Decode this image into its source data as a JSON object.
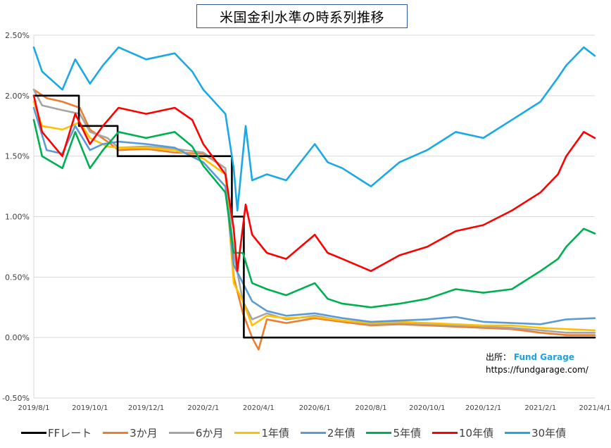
{
  "chart_data": {
    "type": "line",
    "title": "米国金利水準の時系列推移",
    "y_ticks": [
      "2.50%",
      "2.00%",
      "1.50%",
      "1.00%",
      "0.50%",
      "0.00%",
      "-0.50%"
    ],
    "y_tick_values": [
      2.5,
      2.0,
      1.5,
      1.0,
      0.5,
      0.0,
      -0.5
    ],
    "x_ticks": [
      "2019/8/1",
      "2019/10/1",
      "2019/12/1",
      "2020/2/1",
      "2020/4/1",
      "2020/6/1",
      "2020/8/1",
      "2020/10/1",
      "2020/12/1",
      "2021/2/1",
      "2021/4/1"
    ],
    "ylim": [
      -0.5,
      2.5
    ],
    "grid": "horizontal",
    "legend_position": "bottom",
    "source_label": "出所：",
    "source_brand": "Fund Garage",
    "source_url": "https://fundgarage.com/",
    "series": [
      {
        "name": "FFレート",
        "color": "#000000",
        "step": true,
        "points": [
          [
            "2019/8/1",
            2.0
          ],
          [
            "2019/9/19",
            2.0
          ],
          [
            "2019/9/19",
            1.75
          ],
          [
            "2019/10/31",
            1.75
          ],
          [
            "2019/10/31",
            1.5
          ],
          [
            "2020/3/3",
            1.5
          ],
          [
            "2020/3/3",
            1.0
          ],
          [
            "2020/3/16",
            1.0
          ],
          [
            "2020/3/16",
            0.0
          ],
          [
            "2021/4/1",
            0.0
          ]
        ]
      },
      {
        "name": "3か月",
        "color": "#ed7d31",
        "points": [
          [
            "2019/8/1",
            2.05
          ],
          [
            "2019/8/15",
            1.98
          ],
          [
            "2019/9/1",
            1.95
          ],
          [
            "2019/9/20",
            1.9
          ],
          [
            "2019/10/1",
            1.72
          ],
          [
            "2019/10/20",
            1.62
          ],
          [
            "2019/11/1",
            1.55
          ],
          [
            "2019/12/1",
            1.56
          ],
          [
            "2020/1/1",
            1.53
          ],
          [
            "2020/2/1",
            1.52
          ],
          [
            "2020/2/25",
            1.4
          ],
          [
            "2020/3/5",
            0.5
          ],
          [
            "2020/3/15",
            0.2
          ],
          [
            "2020/3/25",
            0.0
          ],
          [
            "2020/4/1",
            -0.1
          ],
          [
            "2020/4/10",
            0.15
          ],
          [
            "2020/5/1",
            0.12
          ],
          [
            "2020/6/1",
            0.16
          ],
          [
            "2020/7/1",
            0.13
          ],
          [
            "2020/8/1",
            0.1
          ],
          [
            "2020/9/1",
            0.11
          ],
          [
            "2020/10/1",
            0.1
          ],
          [
            "2020/11/1",
            0.09
          ],
          [
            "2020/12/1",
            0.08
          ],
          [
            "2021/1/1",
            0.07
          ],
          [
            "2021/2/1",
            0.04
          ],
          [
            "2021/3/1",
            0.02
          ],
          [
            "2021/4/1",
            0.02
          ]
        ]
      },
      {
        "name": "6か月",
        "color": "#a5a5a5",
        "points": [
          [
            "2019/8/1",
            2.05
          ],
          [
            "2019/8/10",
            1.92
          ],
          [
            "2019/9/1",
            1.88
          ],
          [
            "2019/9/20",
            1.85
          ],
          [
            "2019/10/1",
            1.7
          ],
          [
            "2019/10/20",
            1.65
          ],
          [
            "2019/11/1",
            1.57
          ],
          [
            "2019/12/1",
            1.58
          ],
          [
            "2020/1/1",
            1.56
          ],
          [
            "2020/2/1",
            1.53
          ],
          [
            "2020/2/25",
            1.4
          ],
          [
            "2020/3/5",
            0.7
          ],
          [
            "2020/3/15",
            0.3
          ],
          [
            "2020/3/25",
            0.15
          ],
          [
            "2020/4/10",
            0.2
          ],
          [
            "2020/5/1",
            0.15
          ],
          [
            "2020/6/1",
            0.18
          ],
          [
            "2020/7/1",
            0.14
          ],
          [
            "2020/8/1",
            0.11
          ],
          [
            "2020/9/1",
            0.12
          ],
          [
            "2020/10/1",
            0.11
          ],
          [
            "2020/11/1",
            0.1
          ],
          [
            "2020/12/1",
            0.09
          ],
          [
            "2021/1/1",
            0.08
          ],
          [
            "2021/2/1",
            0.06
          ],
          [
            "2021/3/1",
            0.04
          ],
          [
            "2021/4/1",
            0.04
          ]
        ]
      },
      {
        "name": "1年債",
        "color": "#ffc000",
        "points": [
          [
            "2019/8/1",
            1.95
          ],
          [
            "2019/8/10",
            1.75
          ],
          [
            "2019/9/1",
            1.72
          ],
          [
            "2019/9/20",
            1.78
          ],
          [
            "2019/10/1",
            1.65
          ],
          [
            "2019/10/20",
            1.58
          ],
          [
            "2019/11/1",
            1.57
          ],
          [
            "2019/12/1",
            1.57
          ],
          [
            "2020/1/1",
            1.55
          ],
          [
            "2020/2/1",
            1.48
          ],
          [
            "2020/2/25",
            1.35
          ],
          [
            "2020/3/5",
            0.45
          ],
          [
            "2020/3/15",
            0.3
          ],
          [
            "2020/3/25",
            0.1
          ],
          [
            "2020/4/10",
            0.18
          ],
          [
            "2020/5/1",
            0.16
          ],
          [
            "2020/6/1",
            0.17
          ],
          [
            "2020/7/1",
            0.14
          ],
          [
            "2020/8/1",
            0.12
          ],
          [
            "2020/9/1",
            0.13
          ],
          [
            "2020/10/1",
            0.12
          ],
          [
            "2020/11/1",
            0.11
          ],
          [
            "2020/12/1",
            0.1
          ],
          [
            "2021/1/1",
            0.1
          ],
          [
            "2021/2/1",
            0.08
          ],
          [
            "2021/3/1",
            0.07
          ],
          [
            "2021/4/1",
            0.06
          ]
        ]
      },
      {
        "name": "2年債",
        "color": "#5b9bd5",
        "points": [
          [
            "2019/8/1",
            1.9
          ],
          [
            "2019/8/15",
            1.55
          ],
          [
            "2019/9/1",
            1.52
          ],
          [
            "2019/9/15",
            1.75
          ],
          [
            "2019/10/1",
            1.55
          ],
          [
            "2019/10/15",
            1.6
          ],
          [
            "2019/11/1",
            1.62
          ],
          [
            "2019/12/1",
            1.6
          ],
          [
            "2020/1/1",
            1.57
          ],
          [
            "2020/2/1",
            1.45
          ],
          [
            "2020/2/25",
            1.25
          ],
          [
            "2020/3/5",
            0.6
          ],
          [
            "2020/3/15",
            0.45
          ],
          [
            "2020/3/25",
            0.3
          ],
          [
            "2020/4/10",
            0.22
          ],
          [
            "2020/5/1",
            0.18
          ],
          [
            "2020/6/1",
            0.2
          ],
          [
            "2020/7/1",
            0.16
          ],
          [
            "2020/8/1",
            0.13
          ],
          [
            "2020/9/1",
            0.14
          ],
          [
            "2020/10/1",
            0.15
          ],
          [
            "2020/11/1",
            0.17
          ],
          [
            "2020/12/1",
            0.13
          ],
          [
            "2021/1/1",
            0.12
          ],
          [
            "2021/2/1",
            0.11
          ],
          [
            "2021/3/1",
            0.15
          ],
          [
            "2021/4/1",
            0.16
          ]
        ]
      },
      {
        "name": "5年債",
        "color": "#00b050",
        "points": [
          [
            "2019/8/1",
            1.8
          ],
          [
            "2019/8/10",
            1.5
          ],
          [
            "2019/9/1",
            1.4
          ],
          [
            "2019/9/15",
            1.7
          ],
          [
            "2019/10/1",
            1.4
          ],
          [
            "2019/10/15",
            1.55
          ],
          [
            "2019/11/1",
            1.7
          ],
          [
            "2019/12/1",
            1.65
          ],
          [
            "2020/1/1",
            1.7
          ],
          [
            "2020/1/20",
            1.58
          ],
          [
            "2020/2/1",
            1.42
          ],
          [
            "2020/2/25",
            1.2
          ],
          [
            "2020/3/5",
            0.7
          ],
          [
            "2020/3/15",
            0.7
          ],
          [
            "2020/3/25",
            0.45
          ],
          [
            "2020/4/10",
            0.4
          ],
          [
            "2020/5/1",
            0.35
          ],
          [
            "2020/6/1",
            0.45
          ],
          [
            "2020/6/15",
            0.32
          ],
          [
            "2020/7/1",
            0.28
          ],
          [
            "2020/8/1",
            0.25
          ],
          [
            "2020/9/1",
            0.28
          ],
          [
            "2020/10/1",
            0.32
          ],
          [
            "2020/11/1",
            0.4
          ],
          [
            "2020/12/1",
            0.37
          ],
          [
            "2021/1/1",
            0.4
          ],
          [
            "2021/2/1",
            0.55
          ],
          [
            "2021/2/20",
            0.65
          ],
          [
            "2021/3/1",
            0.75
          ],
          [
            "2021/3/20",
            0.9
          ],
          [
            "2021/4/1",
            0.86
          ]
        ]
      },
      {
        "name": "10年債",
        "color": "#ff0000",
        "points": [
          [
            "2019/8/1",
            2.0
          ],
          [
            "2019/8/10",
            1.7
          ],
          [
            "2019/9/1",
            1.5
          ],
          [
            "2019/9/15",
            1.85
          ],
          [
            "2019/10/1",
            1.6
          ],
          [
            "2019/10/15",
            1.75
          ],
          [
            "2019/11/1",
            1.9
          ],
          [
            "2019/12/1",
            1.85
          ],
          [
            "2020/1/1",
            1.9
          ],
          [
            "2020/1/20",
            1.8
          ],
          [
            "2020/2/1",
            1.6
          ],
          [
            "2020/2/25",
            1.35
          ],
          [
            "2020/3/5",
            0.9
          ],
          [
            "2020/3/9",
            0.55
          ],
          [
            "2020/3/18",
            1.1
          ],
          [
            "2020/3/25",
            0.85
          ],
          [
            "2020/4/10",
            0.7
          ],
          [
            "2020/5/1",
            0.65
          ],
          [
            "2020/6/1",
            0.85
          ],
          [
            "2020/6/15",
            0.7
          ],
          [
            "2020/7/1",
            0.65
          ],
          [
            "2020/8/1",
            0.55
          ],
          [
            "2020/9/1",
            0.68
          ],
          [
            "2020/10/1",
            0.75
          ],
          [
            "2020/11/1",
            0.88
          ],
          [
            "2020/12/1",
            0.93
          ],
          [
            "2021/1/1",
            1.05
          ],
          [
            "2021/2/1",
            1.2
          ],
          [
            "2021/2/20",
            1.35
          ],
          [
            "2021/3/1",
            1.5
          ],
          [
            "2021/3/20",
            1.7
          ],
          [
            "2021/4/1",
            1.65
          ]
        ]
      },
      {
        "name": "30年債",
        "color": "#1aa9e6",
        "points": [
          [
            "2019/8/1",
            2.4
          ],
          [
            "2019/8/10",
            2.2
          ],
          [
            "2019/9/1",
            2.05
          ],
          [
            "2019/9/15",
            2.3
          ],
          [
            "2019/10/1",
            2.1
          ],
          [
            "2019/10/15",
            2.25
          ],
          [
            "2019/11/1",
            2.4
          ],
          [
            "2019/12/1",
            2.3
          ],
          [
            "2020/1/1",
            2.35
          ],
          [
            "2020/1/20",
            2.2
          ],
          [
            "2020/2/1",
            2.05
          ],
          [
            "2020/2/25",
            1.85
          ],
          [
            "2020/3/5",
            1.4
          ],
          [
            "2020/3/9",
            1.05
          ],
          [
            "2020/3/18",
            1.75
          ],
          [
            "2020/3/25",
            1.3
          ],
          [
            "2020/4/10",
            1.35
          ],
          [
            "2020/5/1",
            1.3
          ],
          [
            "2020/6/1",
            1.6
          ],
          [
            "2020/6/15",
            1.45
          ],
          [
            "2020/7/1",
            1.4
          ],
          [
            "2020/8/1",
            1.25
          ],
          [
            "2020/9/1",
            1.45
          ],
          [
            "2020/10/1",
            1.55
          ],
          [
            "2020/11/1",
            1.7
          ],
          [
            "2020/12/1",
            1.65
          ],
          [
            "2021/1/1",
            1.8
          ],
          [
            "2021/2/1",
            1.95
          ],
          [
            "2021/2/20",
            2.15
          ],
          [
            "2021/3/1",
            2.25
          ],
          [
            "2021/3/20",
            2.4
          ],
          [
            "2021/4/1",
            2.33
          ]
        ]
      }
    ]
  }
}
